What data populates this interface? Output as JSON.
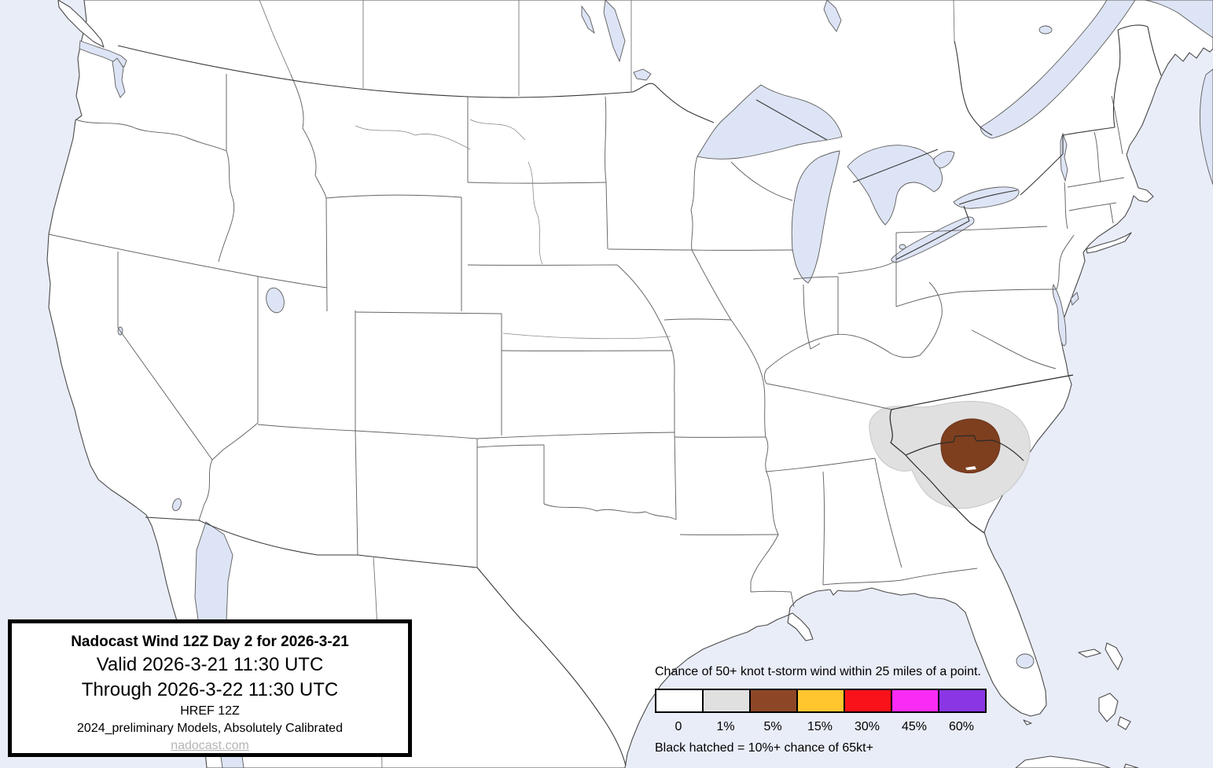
{
  "window": {
    "title": "Nadocast Wind 12Z Day 2 forecast map"
  },
  "map": {
    "water_color": "#e9edf8",
    "land_color": "#ffffff",
    "lake_color": "#dde4f5",
    "risk_areas": [
      {
        "level": "1%",
        "color": "#e0e0e0"
      },
      {
        "level": "5%",
        "color": "#7e3f1f"
      }
    ]
  },
  "title_box": {
    "line1": "Nadocast Wind 12Z Day 2 for 2026-3-21",
    "line2": "Valid 2026-3-21 11:30 UTC",
    "line3": "Through 2026-3-22 11:30 UTC",
    "line4": "HREF 12Z",
    "line5": "2024_preliminary Models, Absolutely Calibrated",
    "link": "nadocast.com"
  },
  "legend": {
    "header": "Chance of 50+ knot t-storm wind within 25 miles of a point.",
    "entries": [
      {
        "label": "0",
        "color": "#ffffff"
      },
      {
        "label": "1%",
        "color": "#e0e0e0"
      },
      {
        "label": "5%",
        "color": "#8d4727"
      },
      {
        "label": "15%",
        "color": "#ffc62e"
      },
      {
        "label": "30%",
        "color": "#f91219"
      },
      {
        "label": "45%",
        "color": "#fb2bf6"
      },
      {
        "label": "60%",
        "color": "#8b36e4"
      }
    ],
    "footer": "Black hatched = 10%+ chance of 65kt+"
  }
}
